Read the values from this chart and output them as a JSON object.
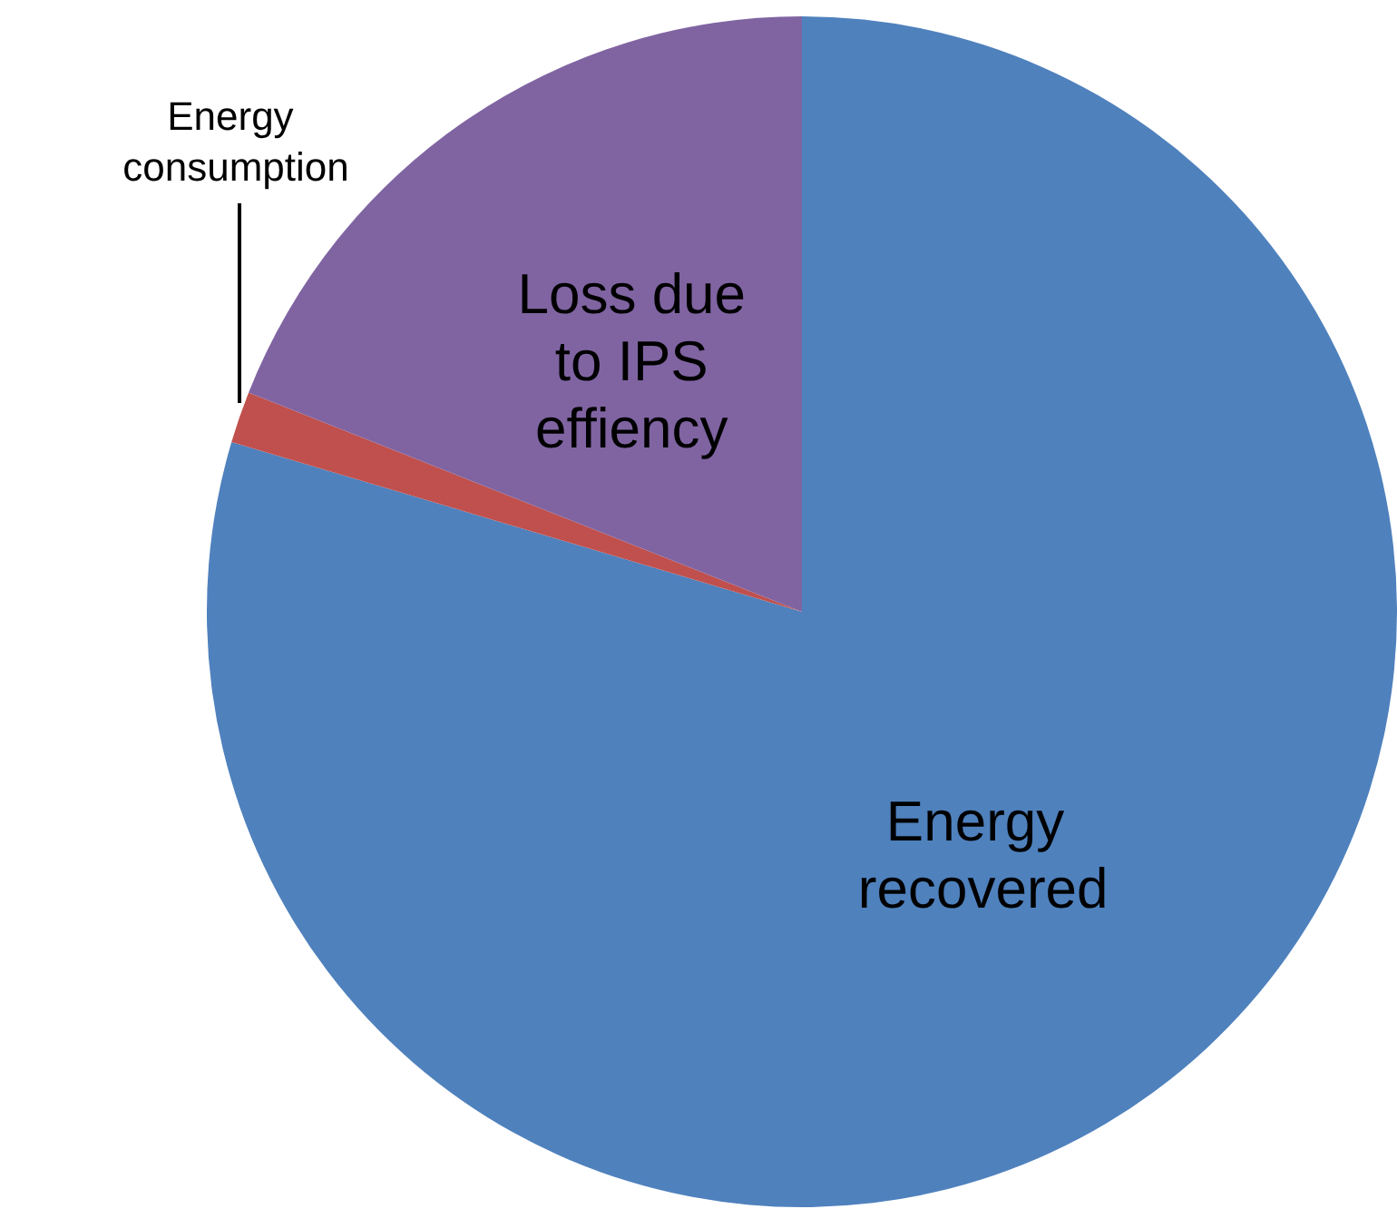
{
  "chart_data": {
    "type": "pie",
    "categories": [
      "Energy recovered",
      "Energy consumption",
      "Loss due to IPS effiency"
    ],
    "values": [
      79.6,
      1.4,
      19.0
    ],
    "colors": [
      "#4f81bd",
      "#c0504d",
      "#8064a2"
    ],
    "legend": false
  }
}
